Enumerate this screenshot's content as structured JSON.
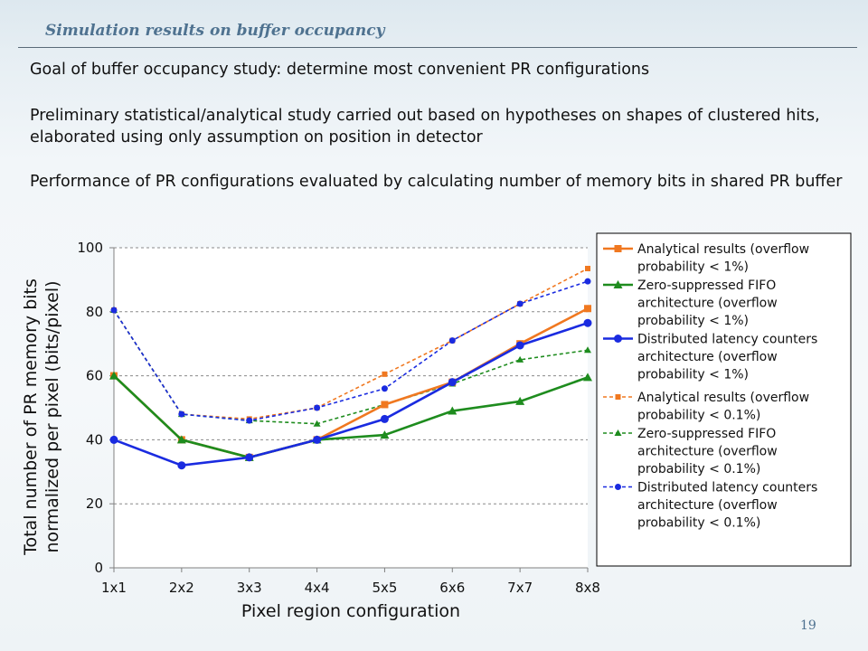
{
  "header": {
    "title": "Simulation results on buffer occupancy"
  },
  "body": {
    "paragraphs": [
      "Goal of buffer occupancy study: determine most convenient PR configurations",
      "Preliminary statistical/analytical study carried out based on hypotheses on shapes of clustered hits, elaborated using only assumption on position in detector",
      "Performance of PR configurations evaluated by calculating number of memory bits in shared PR buffer"
    ]
  },
  "footer": {
    "page_number": "19"
  },
  "chart_data": {
    "type": "line",
    "title": "",
    "xlabel": "Pixel region configuration",
    "ylabel_lines": [
      "Total number of PR memory bits",
      "normalized per pixel (bits/pixel)"
    ],
    "categories": [
      "1x1",
      "2x2",
      "3x3",
      "4x4",
      "5x5",
      "6x6",
      "7x7",
      "8x8"
    ],
    "ylim": [
      0,
      100
    ],
    "yticks": [
      0,
      20,
      40,
      60,
      80,
      100
    ],
    "grid": "horizontal dashed",
    "legend_position": "right",
    "series": [
      {
        "name": "Analytical results (overflow probability < 1%)",
        "legend_lines": [
          "Analytical results (overflow",
          "probability < 1%)"
        ],
        "values": [
          60,
          40,
          34.5,
          40,
          51,
          58,
          70,
          81
        ],
        "color": "#f07820",
        "style": "solid",
        "marker": "square"
      },
      {
        "name": "Zero-suppressed FIFO architecture (overflow probability < 1%)",
        "legend_lines": [
          "Zero-suppressed FIFO",
          "architecture (overflow",
          "probability < 1%)"
        ],
        "values": [
          60,
          40,
          34.5,
          40,
          41.5,
          49,
          52,
          59.5
        ],
        "color": "#1e8c1e",
        "style": "solid",
        "marker": "triangle"
      },
      {
        "name": "Distributed latency counters architecture (overflow probability < 1%)",
        "legend_lines": [
          "Distributed latency counters",
          "architecture (overflow",
          "probability < 1%)"
        ],
        "values": [
          40,
          32,
          34.5,
          40,
          46.5,
          58,
          69.5,
          76.5
        ],
        "color": "#1a2be0",
        "style": "solid",
        "marker": "circle"
      },
      {
        "name": "Analytical results (overflow probability < 0.1%)",
        "legend_lines": [
          "Analytical results (overflow",
          "probability < 0.1%)"
        ],
        "values": [
          80.5,
          48,
          46.5,
          50,
          60.5,
          71,
          82.5,
          93.5
        ],
        "color": "#f07820",
        "style": "dashed",
        "marker": "square"
      },
      {
        "name": "Zero-suppressed FIFO architecture (overflow probability < 0.1%)",
        "legend_lines": [
          "Zero-suppressed FIFO",
          "architecture (overflow",
          "probability < 0.1%)"
        ],
        "values": [
          80.5,
          48,
          46,
          45,
          51,
          57.5,
          65,
          68
        ],
        "color": "#1e8c1e",
        "style": "dashed",
        "marker": "triangle"
      },
      {
        "name": "Distributed latency counters architecture (overflow probability < 0.1%)",
        "legend_lines": [
          "Distributed latency counters",
          "architecture (overflow",
          "probability < 0.1%)"
        ],
        "values": [
          80.5,
          48,
          46,
          50,
          56,
          71,
          82.5,
          89.5
        ],
        "color": "#1a2be0",
        "style": "dashed",
        "marker": "circle"
      }
    ]
  }
}
